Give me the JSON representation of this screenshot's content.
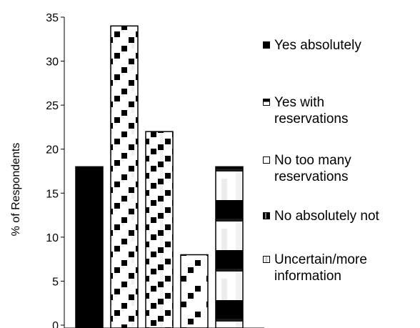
{
  "chart_data": {
    "type": "bar",
    "ylabel": "% of Respondents",
    "ylim": [
      0,
      35
    ],
    "yticks": [
      "0",
      "5",
      "10",
      "15",
      "20",
      "25",
      "30",
      "35"
    ],
    "grid": false,
    "legend_position": "right",
    "series": [
      {
        "name": "Yes absolutely",
        "value": 18,
        "pattern": "solid"
      },
      {
        "name": "Yes with reservations",
        "value": 34,
        "pattern": "diag-dense"
      },
      {
        "name": "No too many reservations",
        "value": 22,
        "pattern": "diag-medium"
      },
      {
        "name": "No absolutely not",
        "value": 8,
        "pattern": "diag-sparse"
      },
      {
        "name": "Uncertain/more information",
        "value": 18,
        "pattern": "bands"
      }
    ]
  },
  "legend": {
    "items": [
      {
        "lines": [
          "Yes absolutely"
        ],
        "swatch": "solid"
      },
      {
        "lines": [
          "Yes with",
          "reservations"
        ],
        "swatch": "half-top"
      },
      {
        "lines": [
          "No too many",
          "reservations"
        ],
        "swatch": "empty"
      },
      {
        "lines": [
          "No absolutely not"
        ],
        "swatch": "mostly-dark"
      },
      {
        "lines": [
          "Uncertain/more",
          "information"
        ],
        "swatch": "light-inner"
      }
    ]
  }
}
